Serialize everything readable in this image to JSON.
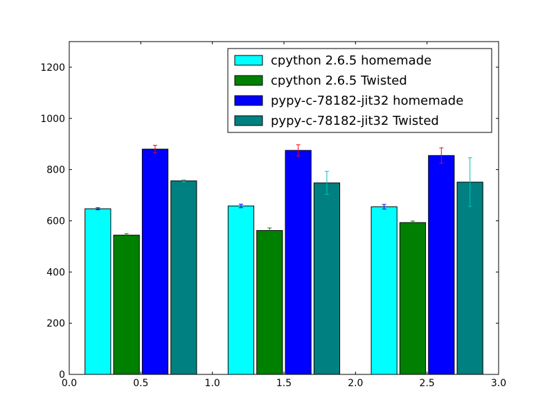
{
  "chart_data": {
    "type": "bar",
    "xlim": [
      0.0,
      3.0
    ],
    "ylim": [
      0,
      1300
    ],
    "xticks": [
      "0.0",
      "0.5",
      "1.0",
      "1.5",
      "2.0",
      "2.5",
      "3.0"
    ],
    "yticks": [
      "0",
      "200",
      "400",
      "600",
      "800",
      "1000",
      "1200"
    ],
    "legend_position": "top-right",
    "bar_width": 0.18,
    "series": [
      {
        "name": "cpython 2.6.5 homemade",
        "color": "#00ffff",
        "err_color": "#0000ff",
        "x": [
          0.11,
          1.11,
          2.11
        ],
        "values": [
          647,
          658,
          655
        ],
        "errors": [
          4,
          7,
          9
        ]
      },
      {
        "name": "cpython 2.6.5 Twisted",
        "color": "#008000",
        "err_color": "#008000",
        "x": [
          0.31,
          1.31,
          2.31
        ],
        "values": [
          544,
          562,
          593
        ],
        "errors": [
          6,
          10,
          6
        ]
      },
      {
        "name": "pypy-c-78182-jit32 homemade",
        "color": "#0000ff",
        "err_color": "#ff0000",
        "x": [
          0.51,
          1.51,
          2.51
        ],
        "values": [
          880,
          875,
          855
        ],
        "errors": [
          15,
          22,
          30
        ]
      },
      {
        "name": "pypy-c-78182-jit32 Twisted",
        "color": "#008080",
        "err_color": "#00bfbf",
        "x": [
          0.71,
          1.71,
          2.71
        ],
        "values": [
          756,
          748,
          751
        ],
        "errors": [
          4,
          45,
          95
        ]
      }
    ]
  }
}
